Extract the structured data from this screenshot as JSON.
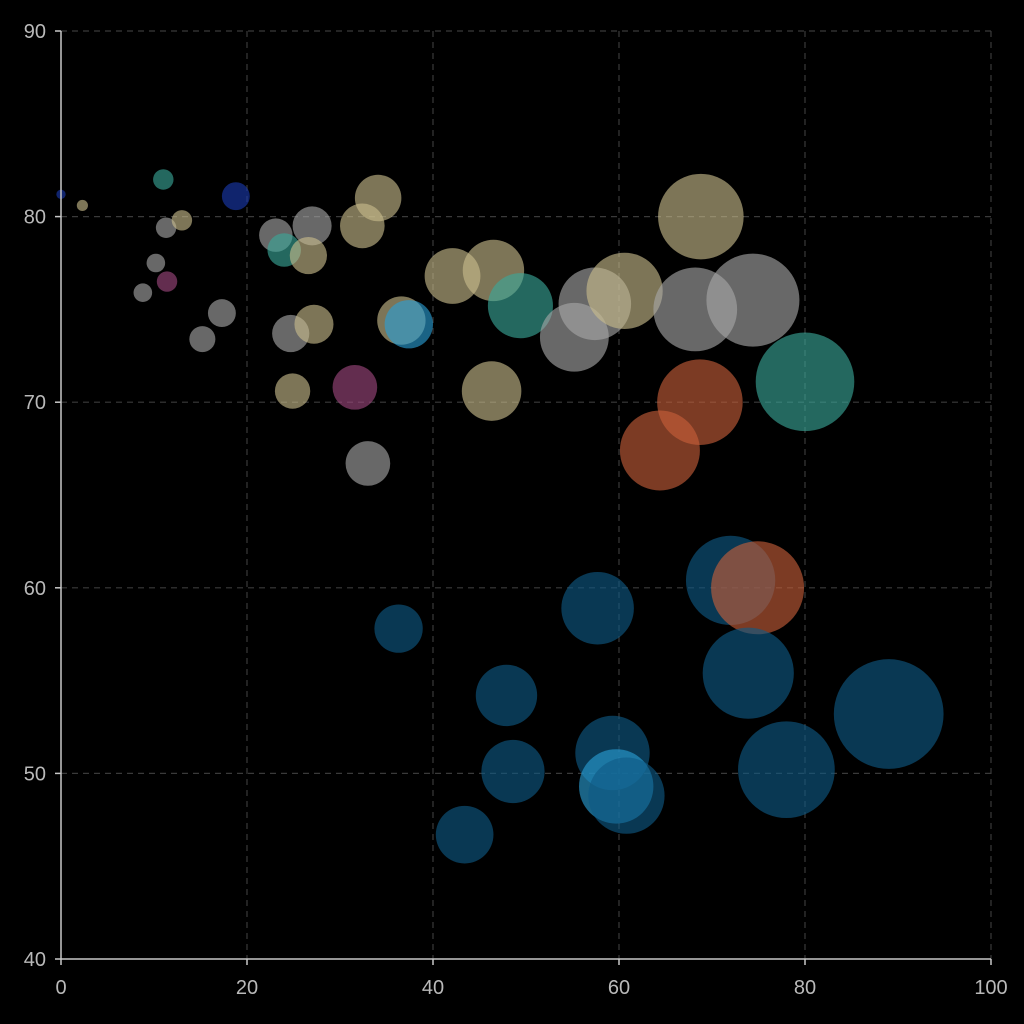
{
  "chart_data": {
    "type": "scatter",
    "variant": "bubble",
    "title": "",
    "xlabel": "",
    "ylabel": "",
    "xlim": [
      0,
      100
    ],
    "ylim": [
      40,
      90
    ],
    "x_ticks": [
      "0",
      "20",
      "40",
      "60",
      "80",
      "100"
    ],
    "y_ticks": [
      "40",
      "50",
      "60",
      "70",
      "80",
      "90"
    ],
    "x_tick_values": [
      0,
      20,
      40,
      60,
      80,
      100
    ],
    "y_tick_values": [
      40,
      50,
      60,
      70,
      80,
      90
    ],
    "grid": true,
    "legend": "none",
    "colors": {
      "khaki": "#c9bd8c",
      "gray": "#a8a8a8",
      "teal": "#3aa89a",
      "rust": "#c8603a",
      "blue": "#0f5a86",
      "lightblue": "#2a9fd6",
      "navy": "#1a3ab0",
      "plum": "#a04880"
    },
    "points": [
      {
        "x": 0.0,
        "y": 81.2,
        "r": 0.5,
        "color": "navy"
      },
      {
        "x": 2.3,
        "y": 80.6,
        "r": 0.6,
        "color": "khaki"
      },
      {
        "x": 11.0,
        "y": 82.0,
        "r": 1.1,
        "color": "teal"
      },
      {
        "x": 18.8,
        "y": 81.1,
        "r": 1.5,
        "color": "navy"
      },
      {
        "x": 11.3,
        "y": 79.4,
        "r": 1.1,
        "color": "gray"
      },
      {
        "x": 13.0,
        "y": 79.8,
        "r": 1.1,
        "color": "khaki"
      },
      {
        "x": 10.2,
        "y": 77.5,
        "r": 1.0,
        "color": "gray"
      },
      {
        "x": 11.4,
        "y": 76.5,
        "r": 1.1,
        "color": "plum"
      },
      {
        "x": 8.8,
        "y": 75.9,
        "r": 1.0,
        "color": "gray"
      },
      {
        "x": 17.3,
        "y": 74.8,
        "r": 1.5,
        "color": "gray"
      },
      {
        "x": 15.2,
        "y": 73.4,
        "r": 1.4,
        "color": "gray"
      },
      {
        "x": 23.1,
        "y": 79.0,
        "r": 1.8,
        "color": "gray"
      },
      {
        "x": 24.0,
        "y": 78.2,
        "r": 1.8,
        "color": "teal"
      },
      {
        "x": 27.0,
        "y": 79.5,
        "r": 2.1,
        "color": "gray"
      },
      {
        "x": 26.6,
        "y": 77.9,
        "r": 2.0,
        "color": "khaki"
      },
      {
        "x": 24.7,
        "y": 73.7,
        "r": 2.0,
        "color": "gray"
      },
      {
        "x": 27.2,
        "y": 74.2,
        "r": 2.1,
        "color": "khaki"
      },
      {
        "x": 24.9,
        "y": 70.6,
        "r": 1.9,
        "color": "khaki"
      },
      {
        "x": 31.6,
        "y": 70.8,
        "r": 2.4,
        "color": "plum"
      },
      {
        "x": 32.4,
        "y": 79.5,
        "r": 2.4,
        "color": "khaki"
      },
      {
        "x": 34.1,
        "y": 81.0,
        "r": 2.5,
        "color": "khaki"
      },
      {
        "x": 33.0,
        "y": 66.7,
        "r": 2.4,
        "color": "gray"
      },
      {
        "x": 36.6,
        "y": 74.4,
        "r": 2.6,
        "color": "khaki"
      },
      {
        "x": 37.4,
        "y": 74.2,
        "r": 2.6,
        "color": "lightblue"
      },
      {
        "x": 36.3,
        "y": 57.8,
        "r": 2.6,
        "color": "blue"
      },
      {
        "x": 42.1,
        "y": 76.8,
        "r": 3.0,
        "color": "khaki"
      },
      {
        "x": 46.5,
        "y": 77.1,
        "r": 3.3,
        "color": "khaki"
      },
      {
        "x": 46.3,
        "y": 70.6,
        "r": 3.2,
        "color": "khaki"
      },
      {
        "x": 49.4,
        "y": 75.2,
        "r": 3.5,
        "color": "teal"
      },
      {
        "x": 47.9,
        "y": 54.2,
        "r": 3.3,
        "color": "blue"
      },
      {
        "x": 48.6,
        "y": 50.1,
        "r": 3.4,
        "color": "blue"
      },
      {
        "x": 43.4,
        "y": 46.7,
        "r": 3.1,
        "color": "blue"
      },
      {
        "x": 55.2,
        "y": 73.5,
        "r": 3.7,
        "color": "gray"
      },
      {
        "x": 57.4,
        "y": 75.3,
        "r": 3.9,
        "color": "gray"
      },
      {
        "x": 60.6,
        "y": 76.0,
        "r": 4.1,
        "color": "khaki"
      },
      {
        "x": 57.7,
        "y": 58.9,
        "r": 3.9,
        "color": "blue"
      },
      {
        "x": 59.3,
        "y": 51.1,
        "r": 4.0,
        "color": "blue"
      },
      {
        "x": 59.7,
        "y": 49.3,
        "r": 4.0,
        "color": "lightblue"
      },
      {
        "x": 60.8,
        "y": 48.8,
        "r": 4.1,
        "color": "blue"
      },
      {
        "x": 64.4,
        "y": 67.4,
        "r": 4.3,
        "color": "rust"
      },
      {
        "x": 68.2,
        "y": 75.0,
        "r": 4.5,
        "color": "gray"
      },
      {
        "x": 68.8,
        "y": 80.0,
        "r": 4.6,
        "color": "khaki"
      },
      {
        "x": 68.7,
        "y": 70.0,
        "r": 4.6,
        "color": "rust"
      },
      {
        "x": 74.4,
        "y": 75.5,
        "r": 5.0,
        "color": "gray"
      },
      {
        "x": 72.0,
        "y": 60.4,
        "r": 4.8,
        "color": "blue"
      },
      {
        "x": 74.9,
        "y": 60.0,
        "r": 5.0,
        "color": "rust"
      },
      {
        "x": 73.9,
        "y": 55.4,
        "r": 4.9,
        "color": "blue"
      },
      {
        "x": 78.0,
        "y": 50.2,
        "r": 5.2,
        "color": "blue"
      },
      {
        "x": 80.0,
        "y": 71.1,
        "r": 5.3,
        "color": "teal"
      },
      {
        "x": 89.0,
        "y": 53.2,
        "r": 5.9,
        "color": "blue"
      }
    ]
  }
}
